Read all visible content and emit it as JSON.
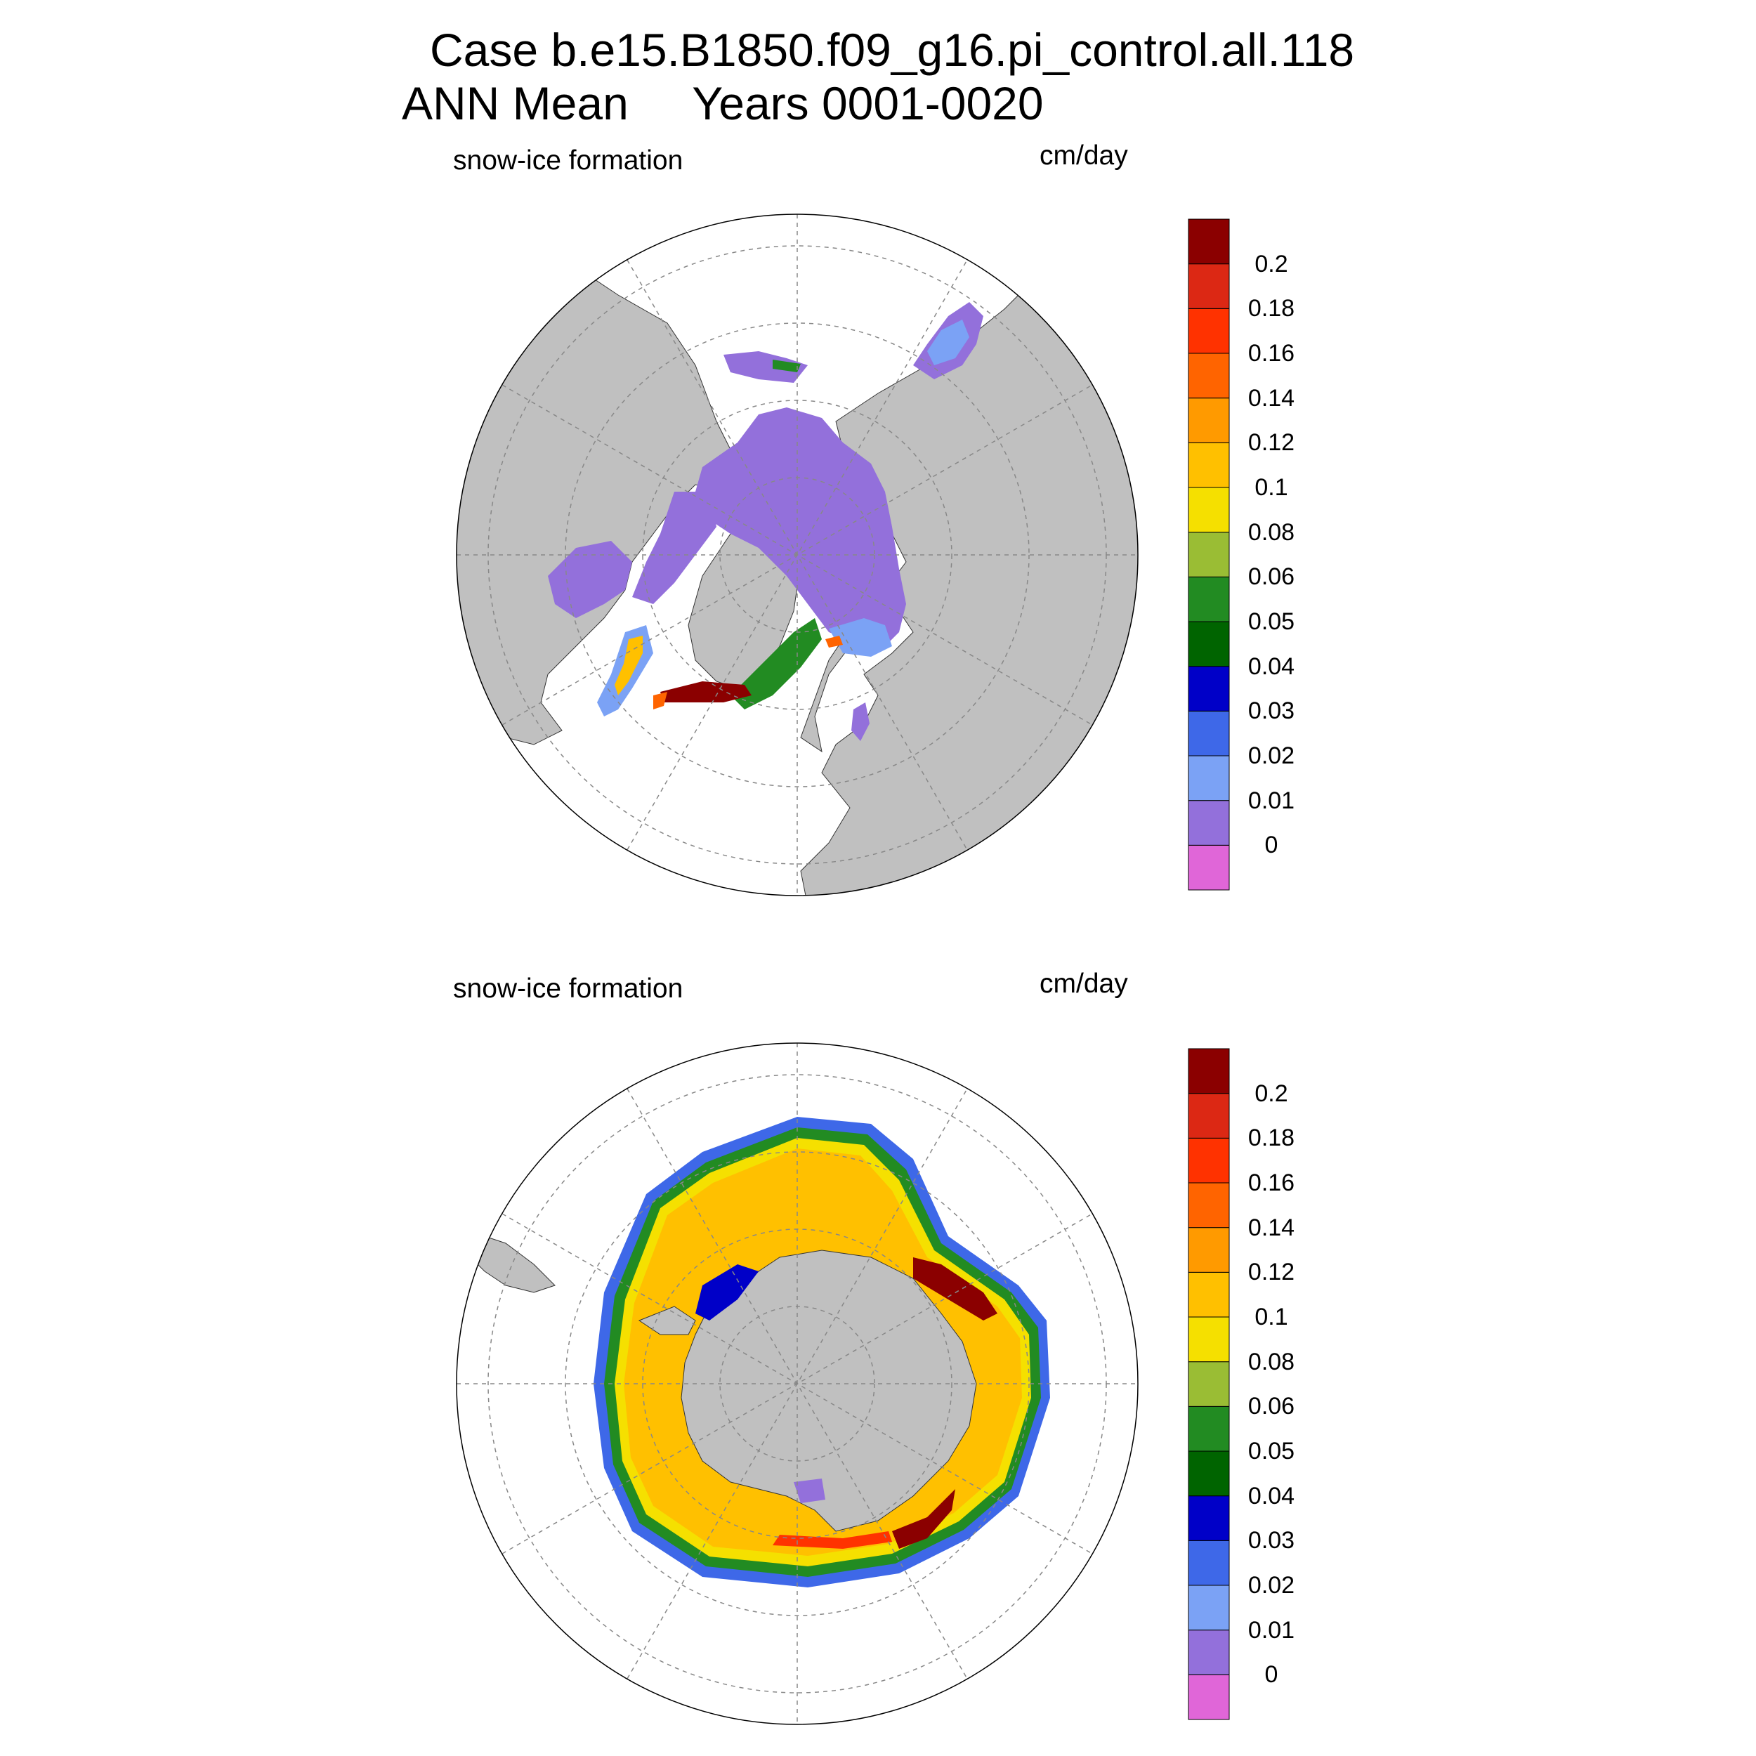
{
  "title": {
    "line1": "Case b.e15.B1850.f09_g16.pi_control.all.118",
    "line2": "ANN Mean     Years 0001-0020"
  },
  "panels": [
    {
      "id": "north",
      "hemisphere": "Northern",
      "variable_label": "snow-ice formation",
      "units": "cm/day"
    },
    {
      "id": "south",
      "hemisphere": "Southern",
      "variable_label": "snow-ice formation",
      "units": "cm/day"
    }
  ],
  "colorbar": {
    "levels": [
      "0",
      "0.01",
      "0.02",
      "0.03",
      "0.04",
      "0.05",
      "0.06",
      "0.08",
      "0.1",
      "0.12",
      "0.14",
      "0.16",
      "0.18",
      "0.2"
    ],
    "colors": [
      "#e066d8",
      "#9370db",
      "#7ba2f5",
      "#3e68e8",
      "#0000c8",
      "#006400",
      "#228b22",
      "#9abd34",
      "#f5e000",
      "#ffc000",
      "#ff9a00",
      "#ff6400",
      "#ff3200",
      "#dc2814",
      "#8b0000"
    ]
  },
  "colors": {
    "land": "#c0c0c0",
    "ocean": "#ffffff",
    "grid": "#888888"
  }
}
